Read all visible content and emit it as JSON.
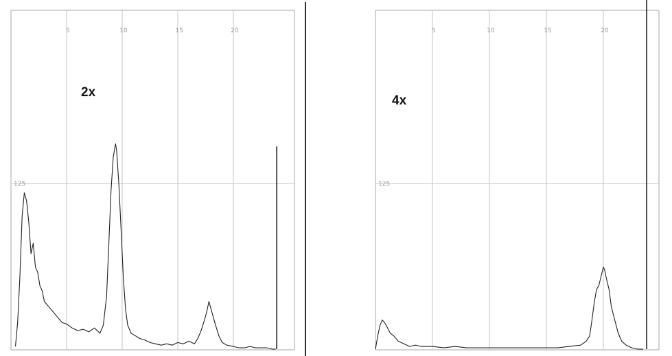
{
  "chart_data": [
    {
      "type": "line",
      "annotation": "2x",
      "xticks": [
        "5",
        "10",
        "15",
        "20"
      ],
      "ytick": "125",
      "peaks": [
        {
          "x": 1.2,
          "y": 118
        },
        {
          "x": 9.5,
          "y": 155
        },
        {
          "x": 17.8,
          "y": 36
        }
      ],
      "spike": {
        "x": 23.9,
        "y": 153
      },
      "series": [
        {
          "x": [
            0.4,
            0.6,
            0.8,
            1.0,
            1.2,
            1.4,
            1.6,
            1.8,
            2.0,
            2.2,
            2.4,
            2.6,
            2.8,
            3.0,
            3.4,
            3.8,
            4.2,
            4.6,
            5.0,
            5.5,
            6.0,
            6.5,
            7.0,
            7.5,
            8.0,
            8.3,
            8.6,
            8.8,
            9.0,
            9.2,
            9.4,
            9.5,
            9.7,
            9.9,
            10.1,
            10.3,
            10.5,
            10.8,
            11.2,
            11.6,
            12.0,
            12.5,
            13.0,
            13.5,
            14.0,
            14.5,
            15.0,
            15.5,
            16.0,
            16.5,
            16.8,
            17.1,
            17.4,
            17.6,
            17.8,
            18.0,
            18.2,
            18.4,
            18.7,
            19.0,
            19.4,
            20.0,
            20.5,
            21.0,
            21.5,
            22.0,
            22.5,
            23.0,
            23.5,
            23.8
          ],
          "y": [
            2,
            20,
            55,
            100,
            118,
            112,
            96,
            72,
            80,
            62,
            58,
            48,
            44,
            36,
            32,
            28,
            24,
            20,
            19,
            16,
            14,
            15,
            13,
            16,
            12,
            18,
            40,
            80,
            120,
            145,
            155,
            150,
            125,
            90,
            55,
            30,
            18,
            12,
            10,
            8,
            7,
            5,
            4,
            3,
            4,
            3,
            5,
            4,
            6,
            4,
            8,
            14,
            22,
            28,
            36,
            30,
            24,
            18,
            10,
            5,
            3,
            2,
            1,
            1,
            2,
            1,
            1,
            1,
            0,
            0
          ]
        }
      ]
    },
    {
      "type": "line",
      "annotation": "4x",
      "xticks": [
        "5",
        "10",
        "15",
        "20"
      ],
      "ytick": "125",
      "peaks": [
        {
          "x": 0.7,
          "y": 22
        },
        {
          "x": 20.1,
          "y": 62
        }
      ],
      "spike": {
        "x": 23.8,
        "y": 298
      },
      "series": [
        {
          "x": [
            0.0,
            0.2,
            0.4,
            0.6,
            0.8,
            1.0,
            1.3,
            1.6,
            2.0,
            2.5,
            3.0,
            3.5,
            4.0,
            5.0,
            6.0,
            7.0,
            8.0,
            9.0,
            10.0,
            11.0,
            12.0,
            13.0,
            14.0,
            15.0,
            16.0,
            17.0,
            18.0,
            18.5,
            18.8,
            19.0,
            19.2,
            19.4,
            19.6,
            19.8,
            20.0,
            20.1,
            20.3,
            20.5,
            20.7,
            21.0,
            21.3,
            21.6,
            22.0,
            22.5,
            23.0,
            23.5
          ],
          "y": [
            0,
            10,
            18,
            22,
            20,
            17,
            12,
            10,
            6,
            4,
            2,
            3,
            2,
            2,
            1,
            2,
            1,
            1,
            1,
            1,
            1,
            1,
            1,
            1,
            1,
            2,
            3,
            6,
            10,
            22,
            35,
            45,
            48,
            55,
            62,
            60,
            52,
            45,
            32,
            22,
            12,
            6,
            3,
            1,
            0,
            0
          ]
        }
      ]
    }
  ]
}
